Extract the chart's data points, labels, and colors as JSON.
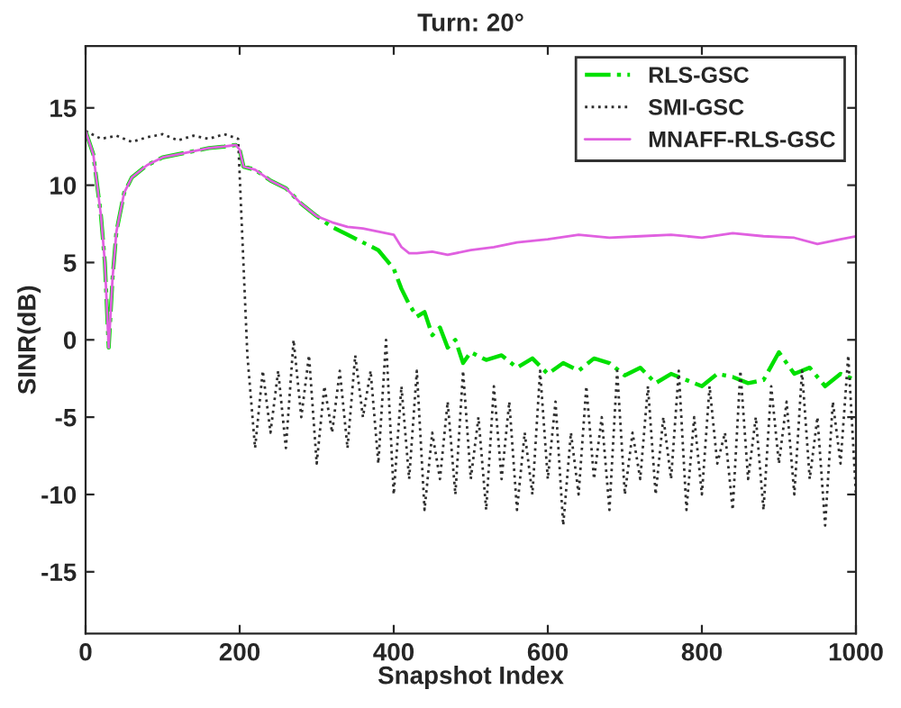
{
  "chart_data": {
    "type": "line",
    "title": "Turn: 20°",
    "xlabel": "Snapshot Index",
    "ylabel": "SINR(dB)",
    "xlim": [
      0,
      1000
    ],
    "ylim": [
      -19,
      19
    ],
    "xticks": [
      0,
      200,
      400,
      600,
      800,
      1000
    ],
    "yticks": [
      -15,
      -10,
      -5,
      0,
      5,
      10,
      15
    ],
    "grid": false,
    "legend": "top right",
    "series": [
      {
        "name": "RLS-GSC",
        "color": "#00e000",
        "line_style": "dashdot",
        "x": [
          0,
          10,
          20,
          25,
          30,
          35,
          40,
          50,
          60,
          80,
          100,
          120,
          140,
          160,
          180,
          195,
          200,
          205,
          220,
          240,
          260,
          280,
          300,
          320,
          340,
          360,
          380,
          400,
          410,
          420,
          430,
          440,
          450,
          460,
          470,
          480,
          490,
          500,
          520,
          540,
          560,
          580,
          600,
          620,
          640,
          660,
          680,
          700,
          720,
          740,
          760,
          780,
          800,
          820,
          840,
          860,
          880,
          900,
          920,
          940,
          960,
          980,
          1000
        ],
        "values": [
          13.5,
          12,
          8,
          5,
          -0.5,
          4,
          7,
          9.5,
          10.5,
          11.3,
          11.8,
          12,
          12.2,
          12.4,
          12.5,
          12.6,
          12.3,
          11.2,
          11,
          10.3,
          9.8,
          8.8,
          8,
          7.3,
          6.8,
          6.3,
          5.8,
          4.6,
          3.3,
          2.3,
          1.5,
          1.8,
          0.3,
          0.8,
          -0.5,
          0,
          -1.5,
          -0.8,
          -1.3,
          -1,
          -1.8,
          -1.2,
          -2.2,
          -1.5,
          -2,
          -1.2,
          -1.5,
          -2.3,
          -1.8,
          -2.8,
          -2.2,
          -2.6,
          -3,
          -2.2,
          -2.4,
          -2.8,
          -2.6,
          -0.8,
          -2.2,
          -1.8,
          -3,
          -2.2,
          -2.6
        ]
      },
      {
        "name": "SMI-GSC",
        "color": "#303030",
        "line_style": "dotted",
        "x": [
          0,
          20,
          40,
          60,
          80,
          100,
          120,
          140,
          160,
          180,
          198,
          210,
          220,
          230,
          240,
          250,
          260,
          270,
          280,
          290,
          300,
          310,
          320,
          330,
          340,
          350,
          360,
          370,
          380,
          390,
          400,
          410,
          420,
          430,
          440,
          450,
          460,
          470,
          480,
          490,
          500,
          510,
          520,
          530,
          540,
          550,
          560,
          570,
          580,
          590,
          600,
          610,
          620,
          630,
          640,
          650,
          660,
          670,
          680,
          690,
          700,
          710,
          720,
          730,
          740,
          750,
          760,
          770,
          780,
          790,
          800,
          810,
          820,
          830,
          840,
          850,
          860,
          870,
          880,
          890,
          900,
          910,
          920,
          930,
          940,
          950,
          960,
          970,
          980,
          990,
          1000
        ],
        "values": [
          13.5,
          13,
          13.2,
          12.8,
          13.1,
          13.3,
          12.9,
          13.2,
          13,
          13.3,
          13,
          -1,
          -7,
          -2,
          -6,
          -2,
          -7,
          0,
          -5,
          -1,
          -8,
          -3,
          -6,
          -2,
          -7,
          -1,
          -5,
          -2,
          -8,
          0,
          -10,
          -3,
          -9,
          -2,
          -11,
          -6,
          -9,
          -4,
          -10,
          -2,
          -9,
          -5,
          -11,
          -3,
          -9,
          -4,
          -11,
          -6,
          -10,
          -2,
          -9,
          -4,
          -12,
          -6,
          -10,
          -3,
          -9,
          -5,
          -11,
          -2,
          -10,
          -6,
          -9,
          -3,
          -10,
          -5,
          -9,
          -2,
          -11,
          -5,
          -10,
          -3,
          -8,
          -6,
          -11,
          -2,
          -9,
          -5,
          -11,
          -3,
          -8,
          -4,
          -10,
          -2,
          -9,
          -5,
          -12,
          -4,
          -8,
          -1,
          -10
        ]
      },
      {
        "name": "MNAFF-RLS-GSC",
        "color": "#e060e0",
        "line_style": "solid",
        "x": [
          0,
          10,
          20,
          25,
          30,
          35,
          40,
          50,
          60,
          80,
          100,
          120,
          140,
          160,
          180,
          195,
          200,
          205,
          220,
          240,
          260,
          280,
          300,
          320,
          340,
          360,
          380,
          400,
          410,
          420,
          430,
          450,
          470,
          500,
          530,
          560,
          600,
          640,
          680,
          720,
          760,
          800,
          840,
          880,
          920,
          950,
          980,
          1000
        ],
        "values": [
          13.5,
          12,
          8,
          5,
          -0.5,
          4,
          7,
          9.5,
          10.5,
          11.3,
          11.8,
          12,
          12.2,
          12.4,
          12.5,
          12.6,
          12.3,
          11.2,
          11,
          10.3,
          9.8,
          8.8,
          8,
          7.6,
          7.3,
          7.2,
          7,
          6.8,
          6,
          5.6,
          5.6,
          5.7,
          5.5,
          5.8,
          6,
          6.3,
          6.5,
          6.8,
          6.6,
          6.7,
          6.8,
          6.6,
          6.9,
          6.7,
          6.6,
          6.2,
          6.5,
          6.7
        ]
      }
    ]
  }
}
